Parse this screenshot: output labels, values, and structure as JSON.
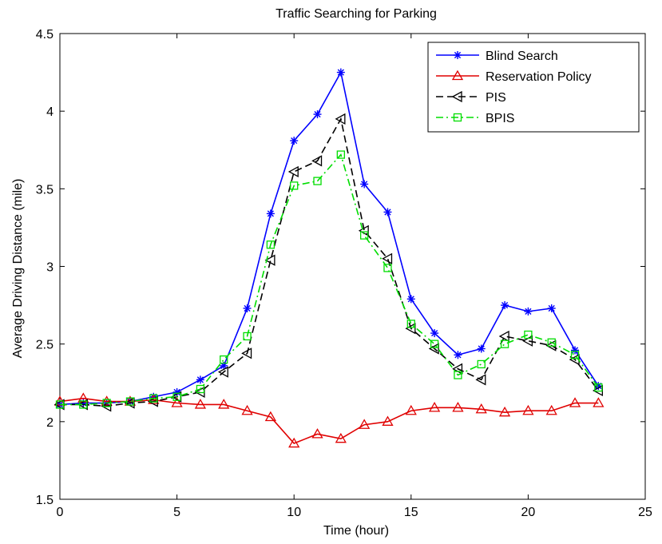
{
  "chart_data": {
    "type": "line",
    "title": "Traffic Searching for Parking",
    "xlabel": "Time (hour)",
    "ylabel": "Average Driving Distance (mile)",
    "xlim": [
      0,
      25
    ],
    "ylim": [
      1.5,
      4.5
    ],
    "xticks": [
      0,
      5,
      10,
      15,
      20,
      25
    ],
    "yticks": [
      1.5,
      2,
      2.5,
      3,
      3.5,
      4,
      4.5
    ],
    "xtick_labels": [
      "0",
      "5",
      "10",
      "15",
      "20",
      "25"
    ],
    "ytick_labels": [
      "1.5",
      "2",
      "2.5",
      "3",
      "3.5",
      "4",
      "4.5"
    ],
    "grid": false,
    "legend_position": "top-right",
    "x": [
      0,
      1,
      2,
      3,
      4,
      5,
      6,
      7,
      8,
      9,
      10,
      11,
      12,
      13,
      14,
      15,
      16,
      17,
      18,
      19,
      20,
      21,
      22,
      23
    ],
    "series": [
      {
        "name": "Blind Search",
        "color": "#0000ff",
        "marker": "star",
        "dash": "solid",
        "values": [
          2.11,
          2.12,
          2.12,
          2.13,
          2.16,
          2.19,
          2.27,
          2.36,
          2.73,
          3.34,
          3.81,
          3.98,
          4.25,
          3.53,
          3.35,
          2.79,
          2.57,
          2.43,
          2.47,
          2.75,
          2.71,
          2.73,
          2.46,
          2.23
        ]
      },
      {
        "name": "Reservation Policy",
        "color": "#e00000",
        "marker": "triangle-up",
        "dash": "solid",
        "values": [
          2.13,
          2.15,
          2.13,
          2.13,
          2.14,
          2.12,
          2.11,
          2.11,
          2.07,
          2.03,
          1.86,
          1.92,
          1.89,
          1.98,
          2.0,
          2.07,
          2.09,
          2.09,
          2.08,
          2.06,
          2.07,
          2.07,
          2.12,
          2.12
        ]
      },
      {
        "name": "PIS",
        "color": "#000000",
        "marker": "triangle-left",
        "dash": "dash",
        "values": [
          2.11,
          2.11,
          2.1,
          2.12,
          2.13,
          2.16,
          2.19,
          2.32,
          2.44,
          3.04,
          3.61,
          3.68,
          3.95,
          3.23,
          3.05,
          2.6,
          2.47,
          2.34,
          2.27,
          2.55,
          2.52,
          2.49,
          2.4,
          2.2
        ]
      },
      {
        "name": "BPIS",
        "color": "#00dd00",
        "marker": "square",
        "dash": "dashdot",
        "values": [
          2.11,
          2.11,
          2.12,
          2.13,
          2.15,
          2.16,
          2.21,
          2.4,
          2.55,
          3.14,
          3.52,
          3.55,
          3.72,
          3.2,
          2.99,
          2.63,
          2.5,
          2.3,
          2.37,
          2.5,
          2.56,
          2.51,
          2.43,
          2.22
        ]
      }
    ]
  }
}
